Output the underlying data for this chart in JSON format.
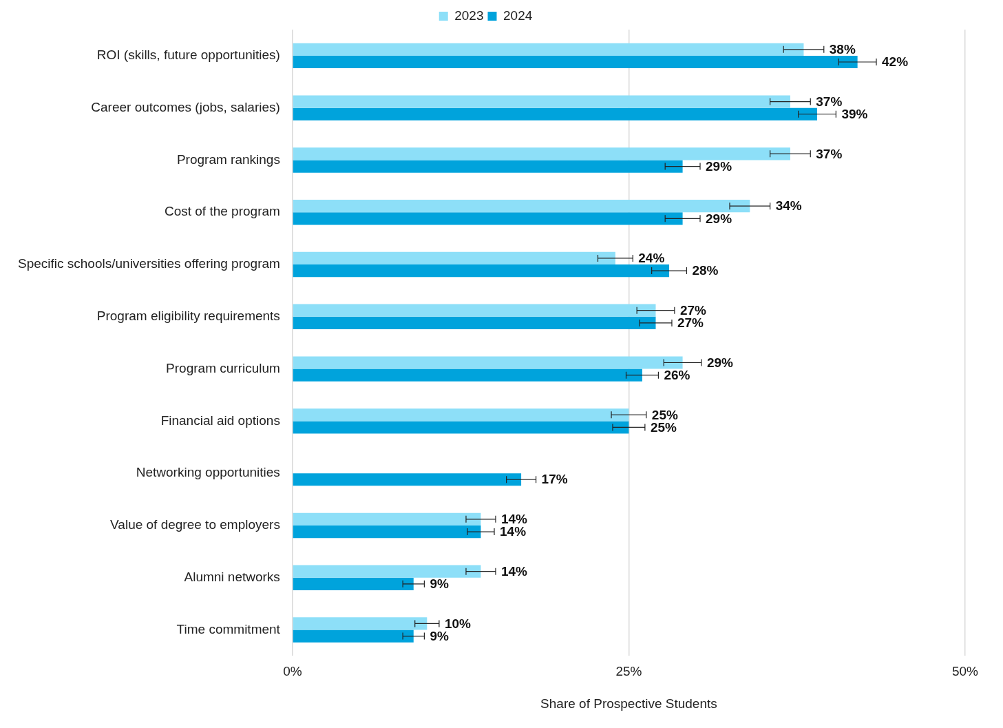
{
  "chart_data": {
    "type": "bar",
    "orientation": "horizontal",
    "xlabel": "Share of Prospective Students",
    "categories": [
      "ROI (skills, future opportunities)",
      "Career outcomes (jobs, salaries)",
      "Program rankings",
      "Cost of the program",
      "Specific schools/universities offering program",
      "Program eligibility requirements",
      "Program curriculum",
      "Financial aid options",
      "Networking opportunities",
      "Value of degree to employers",
      "Alumni networks",
      "Time commitment"
    ],
    "series": [
      {
        "name": "2023",
        "color": "#8ddff8",
        "values": [
          38,
          37,
          37,
          34,
          24,
          27,
          29,
          25,
          null,
          14,
          14,
          10
        ],
        "errors": [
          1.5,
          1.5,
          1.5,
          1.5,
          1.3,
          1.4,
          1.4,
          1.3,
          null,
          1.1,
          1.1,
          0.9
        ],
        "value_labels": [
          "38%",
          "37%",
          "37%",
          "34%",
          "24%",
          "27%",
          "29%",
          "25%",
          null,
          "14%",
          "14%",
          "10%"
        ]
      },
      {
        "name": "2024",
        "color": "#00a3dc",
        "values": [
          42,
          39,
          29,
          29,
          28,
          27,
          26,
          25,
          17,
          14,
          9,
          9
        ],
        "errors": [
          1.4,
          1.4,
          1.3,
          1.3,
          1.3,
          1.2,
          1.2,
          1.2,
          1.1,
          1.0,
          0.8,
          0.8
        ],
        "value_labels": [
          "42%",
          "39%",
          "29%",
          "29%",
          "28%",
          "27%",
          "26%",
          "25%",
          "17%",
          "14%",
          "9%",
          "9%"
        ]
      }
    ],
    "xlim": [
      0,
      50
    ],
    "xticks": [
      {
        "value": 0,
        "label": "0%"
      },
      {
        "value": 25,
        "label": "25%"
      },
      {
        "value": 50,
        "label": "50%"
      }
    ],
    "grid": "x",
    "legend": "top"
  }
}
